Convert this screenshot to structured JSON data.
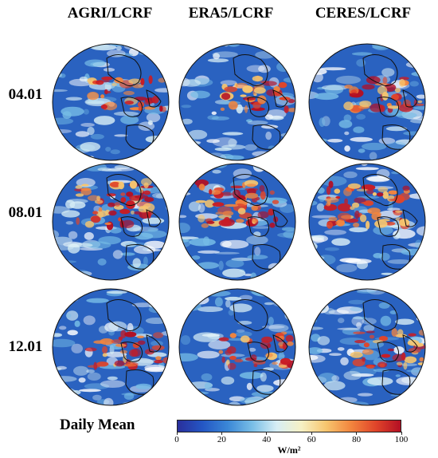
{
  "columns": [
    "AGRI/LCRF",
    "ERA5/LCRF",
    "CERES/LCRF"
  ],
  "rows": [
    "04.01",
    "08.01",
    "12.01"
  ],
  "footer_title": "Daily Mean",
  "colorbar": {
    "ticks": [
      "0",
      "20",
      "40",
      "60",
      "80",
      "100"
    ],
    "unit": "W/m²",
    "range": [
      0,
      100
    ],
    "colors": [
      "#2a2f9c",
      "#2456c4",
      "#3a86d6",
      "#77bde6",
      "#d7eef5",
      "#f6f1c4",
      "#f7c56e",
      "#f2853e",
      "#e0452a",
      "#b30f24"
    ]
  }
}
